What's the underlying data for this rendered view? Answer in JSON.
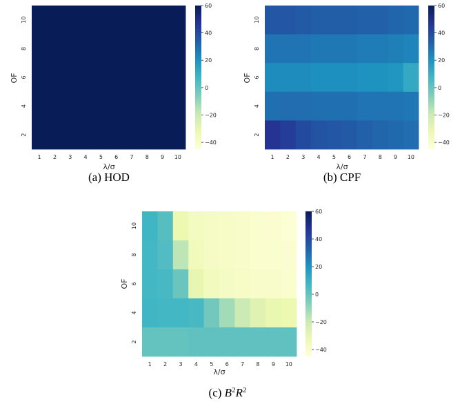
{
  "colorscale": {
    "name": "YlGnBu",
    "stops": [
      "#ffffd9",
      "#edf8b1",
      "#c7e9b4",
      "#7fcdbb",
      "#41b6c4",
      "#1d91c0",
      "#225ea8",
      "#253494",
      "#081d58"
    ],
    "vmin": -45,
    "vmax": 60
  },
  "chart_data": [
    {
      "type": "heatmap",
      "caption": "(a) HOD",
      "xlabel": "λ/σ",
      "ylabel": "OF",
      "x_ticks": [
        "1",
        "2",
        "3",
        "4",
        "5",
        "6",
        "7",
        "8",
        "9",
        "10"
      ],
      "y_ticks": [
        "2",
        "4",
        "6",
        "8",
        "10"
      ],
      "colorbar_ticks": [
        60,
        40,
        20,
        0,
        -20,
        -40
      ],
      "colorbar_tick_labels": [
        "60",
        "40",
        "20",
        "0",
        "−20",
        "−40"
      ],
      "x": [
        1,
        2,
        3,
        4,
        5,
        6,
        7,
        8,
        9,
        10
      ],
      "y": [
        10,
        8,
        6,
        4,
        2
      ],
      "z": [
        [
          60,
          60,
          60,
          60,
          60,
          60,
          60,
          60,
          60,
          60
        ],
        [
          60,
          60,
          60,
          60,
          60,
          60,
          60,
          60,
          60,
          60
        ],
        [
          60,
          60,
          60,
          60,
          60,
          60,
          60,
          60,
          60,
          60
        ],
        [
          60,
          60,
          60,
          60,
          60,
          60,
          60,
          60,
          60,
          60
        ],
        [
          60,
          60,
          60,
          60,
          60,
          60,
          60,
          60,
          60,
          60
        ]
      ]
    },
    {
      "type": "heatmap",
      "caption": "(b) CPF",
      "xlabel": "λ/σ",
      "ylabel": "OF",
      "x_ticks": [
        "1",
        "2",
        "3",
        "4",
        "5",
        "6",
        "7",
        "8",
        "9",
        "10"
      ],
      "y_ticks": [
        "2",
        "4",
        "6",
        "8",
        "10"
      ],
      "colorbar_ticks": [
        60,
        40,
        20,
        0,
        -20,
        -40
      ],
      "colorbar_tick_labels": [
        "60",
        "40",
        "20",
        "0",
        "−20",
        "−40"
      ],
      "x": [
        1,
        2,
        3,
        4,
        5,
        6,
        7,
        8,
        9,
        10
      ],
      "y": [
        10,
        8,
        6,
        4,
        2
      ],
      "z": [
        [
          36,
          36,
          35,
          34,
          34,
          34,
          33,
          33,
          32,
          31
        ],
        [
          28,
          28,
          28,
          27,
          27,
          27,
          26,
          26,
          25,
          24
        ],
        [
          22,
          22,
          22,
          21,
          21,
          21,
          20,
          20,
          19,
          12
        ],
        [
          29,
          30,
          30,
          29,
          29,
          29,
          28,
          28,
          28,
          27
        ],
        [
          47,
          44,
          40,
          37,
          36,
          35,
          33,
          32,
          31,
          30
        ]
      ]
    },
    {
      "type": "heatmap",
      "caption": "(c) B²R²",
      "caption_parts": {
        "prefix": "(c) ",
        "b": "B",
        "r": "R",
        "exp": "2"
      },
      "xlabel": "λ/σ",
      "ylabel": "OF",
      "x_ticks": [
        "1",
        "2",
        "3",
        "4",
        "5",
        "6",
        "7",
        "8",
        "9",
        "10"
      ],
      "y_ticks": [
        "2",
        "4",
        "6",
        "8",
        "10"
      ],
      "colorbar_ticks": [
        60,
        40,
        20,
        0,
        -20,
        -40
      ],
      "colorbar_tick_labels": [
        "60",
        "40",
        "20",
        "0",
        "−20",
        "−40"
      ],
      "x": [
        1,
        2,
        3,
        4,
        5,
        6,
        7,
        8,
        9,
        10
      ],
      "y": [
        10,
        8,
        6,
        4,
        2
      ],
      "z": [
        [
          8,
          3,
          -32,
          -37,
          -38,
          -39,
          -40,
          -41,
          -42,
          -43
        ],
        [
          7,
          4,
          -17,
          -35,
          -38,
          -39,
          -40,
          -41,
          -41,
          -42
        ],
        [
          7,
          6,
          -1,
          -30,
          -36,
          -38,
          -39,
          -40,
          -40,
          -41
        ],
        [
          8,
          7,
          7,
          6,
          -3,
          -12,
          -20,
          -27,
          -31,
          -32
        ],
        [
          0,
          0,
          0,
          1,
          1,
          1,
          1,
          1,
          1,
          1
        ]
      ]
    }
  ]
}
